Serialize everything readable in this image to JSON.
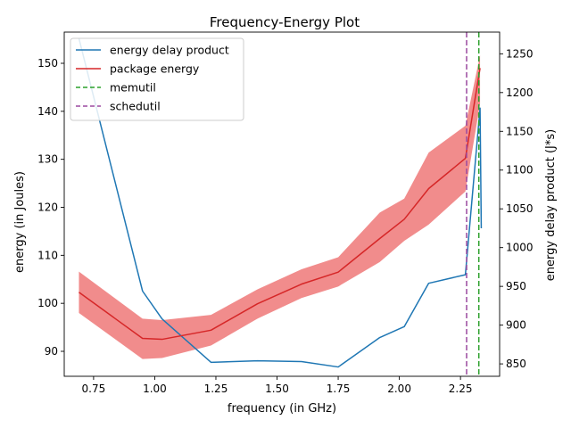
{
  "chart_data": {
    "type": "line",
    "title": "Frequency-Energy Plot",
    "xlabel": "frequency (in GHz)",
    "ylabel": "energy (in Joules)",
    "ylabel_right": "energy delay product (J*s)",
    "xlim": [
      0.63,
      2.41
    ],
    "ylim": [
      84.8,
      156.5
    ],
    "ylim_right": [
      834,
      1278
    ],
    "x_ticks": [
      0.75,
      1.0,
      1.25,
      1.5,
      1.75,
      2.0,
      2.25
    ],
    "x_tick_labels": [
      "0.75",
      "1.00",
      "1.25",
      "1.50",
      "1.75",
      "2.00",
      "2.25"
    ],
    "y_ticks": [
      90,
      100,
      110,
      120,
      130,
      140,
      150
    ],
    "y_tick_labels": [
      "90",
      "100",
      "110",
      "120",
      "130",
      "140",
      "150"
    ],
    "y_ticks_right": [
      850,
      900,
      950,
      1000,
      1050,
      1100,
      1150,
      1200,
      1250
    ],
    "y_tick_labels_right": [
      "850",
      "900",
      "950",
      "1000",
      "1050",
      "1100",
      "1150",
      "1200",
      "1250"
    ],
    "grid": false,
    "legend_position": "top-left",
    "series": [
      {
        "name": "energy delay product",
        "axis": "right",
        "color": "#1f77b4",
        "style": "solid",
        "x": [
          0.69,
          0.95,
          1.03,
          1.23,
          1.42,
          1.6,
          1.75,
          1.92,
          2.02,
          2.12,
          2.27,
          2.33,
          2.335
        ],
        "y": [
          1270,
          944,
          908,
          852,
          854,
          853,
          846,
          884,
          898,
          954,
          965,
          1180,
          1025
        ]
      },
      {
        "name": "package energy",
        "axis": "left",
        "color": "#d62728",
        "style": "solid",
        "x": [
          0.69,
          0.95,
          1.03,
          1.23,
          1.42,
          1.6,
          1.75,
          1.92,
          2.02,
          2.12,
          2.27,
          2.33
        ],
        "y": [
          102.3,
          92.7,
          92.5,
          94.4,
          99.9,
          104.0,
          106.5,
          113.5,
          117.5,
          123.9,
          130.2,
          149.0
        ],
        "band_low": [
          98.0,
          88.4,
          88.6,
          91.2,
          96.8,
          101.1,
          103.5,
          108.6,
          113.0,
          116.4,
          123.3,
          141.5
        ],
        "band_high": [
          106.6,
          96.8,
          96.5,
          97.6,
          102.9,
          107.1,
          109.6,
          118.9,
          121.8,
          131.4,
          137.0,
          151.7
        ],
        "band_color": "#f08080"
      },
      {
        "name": "memutil",
        "axis": "left",
        "color": "#2ca02c",
        "style": "dashed",
        "vline_x": 2.325
      },
      {
        "name": "schedutil",
        "axis": "left",
        "color": "#9b4aa0",
        "style": "dashed",
        "vline_x": 2.275
      }
    ]
  }
}
